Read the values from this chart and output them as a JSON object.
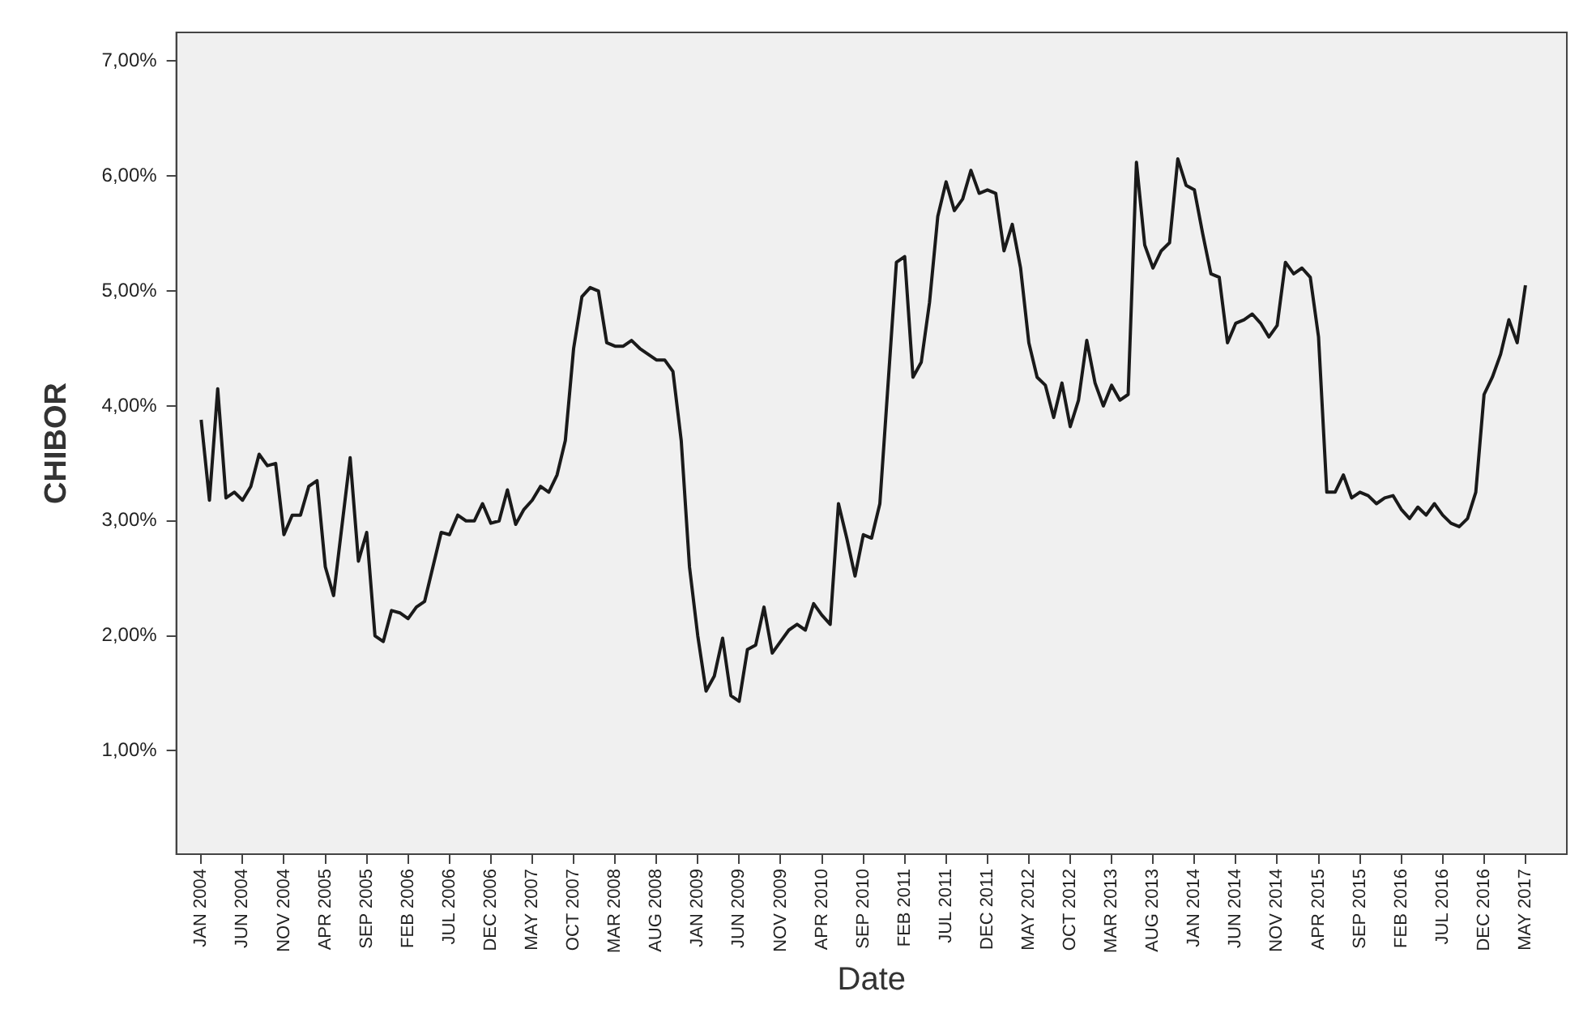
{
  "chart_data": {
    "type": "line",
    "xlabel": "Date",
    "ylabel": "CHIBOR",
    "color": "#1a1a1a",
    "grid": false,
    "legend": false,
    "marker": "none",
    "line_style": "solid",
    "ylim": [
      0.1,
      7.25
    ],
    "yticks": [
      {
        "value": 1,
        "label": "1,00%"
      },
      {
        "value": 2,
        "label": "2,00%"
      },
      {
        "value": 3,
        "label": "3,00%"
      },
      {
        "value": 4,
        "label": "4,00%"
      },
      {
        "value": 5,
        "label": "5,00%"
      },
      {
        "value": 6,
        "label": "6,00%"
      },
      {
        "value": 7,
        "label": "7,00%"
      }
    ],
    "xlim": [
      "2003-10",
      "2017-10"
    ],
    "xticks": [
      {
        "value": "2004-01",
        "label": "JAN 2004"
      },
      {
        "value": "2004-06",
        "label": "JUN 2004"
      },
      {
        "value": "2004-11",
        "label": "NOV 2004"
      },
      {
        "value": "2005-04",
        "label": "APR 2005"
      },
      {
        "value": "2005-09",
        "label": "SEP 2005"
      },
      {
        "value": "2006-02",
        "label": "FEB 2006"
      },
      {
        "value": "2006-07",
        "label": "JUL 2006"
      },
      {
        "value": "2006-12",
        "label": "DEC 2006"
      },
      {
        "value": "2007-05",
        "label": "MAY 2007"
      },
      {
        "value": "2007-10",
        "label": "OCT 2007"
      },
      {
        "value": "2008-03",
        "label": "MAR 2008"
      },
      {
        "value": "2008-08",
        "label": "AUG 2008"
      },
      {
        "value": "2009-01",
        "label": "JAN 2009"
      },
      {
        "value": "2009-06",
        "label": "JUN 2009"
      },
      {
        "value": "2009-11",
        "label": "NOV 2009"
      },
      {
        "value": "2010-04",
        "label": "APR 2010"
      },
      {
        "value": "2010-09",
        "label": "SEP 2010"
      },
      {
        "value": "2011-02",
        "label": "FEB 2011"
      },
      {
        "value": "2011-07",
        "label": "JUL 2011"
      },
      {
        "value": "2011-12",
        "label": "DEC 2011"
      },
      {
        "value": "2012-05",
        "label": "MAY 2012"
      },
      {
        "value": "2012-10",
        "label": "OCT 2012"
      },
      {
        "value": "2013-03",
        "label": "MAR 2013"
      },
      {
        "value": "2013-08",
        "label": "AUG 2013"
      },
      {
        "value": "2014-01",
        "label": "JAN 2014"
      },
      {
        "value": "2014-06",
        "label": "JUN 2014"
      },
      {
        "value": "2014-11",
        "label": "NOV 2014"
      },
      {
        "value": "2015-04",
        "label": "APR 2015"
      },
      {
        "value": "2015-09",
        "label": "SEP 2015"
      },
      {
        "value": "2016-02",
        "label": "FEB 2016"
      },
      {
        "value": "2016-07",
        "label": "JUL 2016"
      },
      {
        "value": "2016-12",
        "label": "DEC 2016"
      },
      {
        "value": "2017-05",
        "label": "MAY 2017"
      }
    ],
    "x": [
      "2004-01",
      "2004-02",
      "2004-03",
      "2004-04",
      "2004-05",
      "2004-06",
      "2004-07",
      "2004-08",
      "2004-09",
      "2004-10",
      "2004-11",
      "2004-12",
      "2005-01",
      "2005-02",
      "2005-03",
      "2005-04",
      "2005-05",
      "2005-06",
      "2005-07",
      "2005-08",
      "2005-09",
      "2005-10",
      "2005-11",
      "2005-12",
      "2006-01",
      "2006-02",
      "2006-03",
      "2006-04",
      "2006-05",
      "2006-06",
      "2006-07",
      "2006-08",
      "2006-09",
      "2006-10",
      "2006-11",
      "2006-12",
      "2007-01",
      "2007-02",
      "2007-03",
      "2007-04",
      "2007-05",
      "2007-06",
      "2007-07",
      "2007-08",
      "2007-09",
      "2007-10",
      "2007-11",
      "2007-12",
      "2008-01",
      "2008-02",
      "2008-03",
      "2008-04",
      "2008-05",
      "2008-06",
      "2008-07",
      "2008-08",
      "2008-09",
      "2008-10",
      "2008-11",
      "2008-12",
      "2009-01",
      "2009-02",
      "2009-03",
      "2009-04",
      "2009-05",
      "2009-06",
      "2009-07",
      "2009-08",
      "2009-09",
      "2009-10",
      "2009-11",
      "2009-12",
      "2010-01",
      "2010-02",
      "2010-03",
      "2010-04",
      "2010-05",
      "2010-06",
      "2010-07",
      "2010-08",
      "2010-09",
      "2010-10",
      "2010-11",
      "2010-12",
      "2011-01",
      "2011-02",
      "2011-03",
      "2011-04",
      "2011-05",
      "2011-06",
      "2011-07",
      "2011-08",
      "2011-09",
      "2011-10",
      "2011-11",
      "2011-12",
      "2012-01",
      "2012-02",
      "2012-03",
      "2012-04",
      "2012-05",
      "2012-06",
      "2012-07",
      "2012-08",
      "2012-09",
      "2012-10",
      "2012-11",
      "2012-12",
      "2013-01",
      "2013-02",
      "2013-03",
      "2013-04",
      "2013-05",
      "2013-06",
      "2013-07",
      "2013-08",
      "2013-09",
      "2013-10",
      "2013-11",
      "2013-12",
      "2014-01",
      "2014-02",
      "2014-03",
      "2014-04",
      "2014-05",
      "2014-06",
      "2014-07",
      "2014-08",
      "2014-09",
      "2014-10",
      "2014-11",
      "2014-12",
      "2015-01",
      "2015-02",
      "2015-03",
      "2015-04",
      "2015-05",
      "2015-06",
      "2015-07",
      "2015-08",
      "2015-09",
      "2015-10",
      "2015-11",
      "2015-12",
      "2016-01",
      "2016-02",
      "2016-03",
      "2016-04",
      "2016-05",
      "2016-06",
      "2016-07",
      "2016-08",
      "2016-09",
      "2016-10",
      "2016-11",
      "2016-12",
      "2017-01",
      "2017-02",
      "2017-03",
      "2017-04",
      "2017-05"
    ],
    "values": [
      3.88,
      3.18,
      4.15,
      3.2,
      3.25,
      3.18,
      3.3,
      3.58,
      3.48,
      3.5,
      2.88,
      3.05,
      3.05,
      3.3,
      3.35,
      2.6,
      2.35,
      2.95,
      3.55,
      2.65,
      2.9,
      2.0,
      1.95,
      2.22,
      2.2,
      2.15,
      2.25,
      2.3,
      2.6,
      2.9,
      2.88,
      3.05,
      3.0,
      3.0,
      3.15,
      2.98,
      3.0,
      3.27,
      2.97,
      3.1,
      3.18,
      3.3,
      3.25,
      3.4,
      3.7,
      4.5,
      4.95,
      5.03,
      5.0,
      4.55,
      4.52,
      4.52,
      4.57,
      4.5,
      4.45,
      4.4,
      4.4,
      4.3,
      3.7,
      2.6,
      2.0,
      1.52,
      1.65,
      1.98,
      1.48,
      1.43,
      1.88,
      1.92,
      2.25,
      1.85,
      1.95,
      2.05,
      2.1,
      2.05,
      2.28,
      2.18,
      2.1,
      3.15,
      2.85,
      2.52,
      2.88,
      2.85,
      3.15,
      4.2,
      5.25,
      5.3,
      4.25,
      4.38,
      4.9,
      5.65,
      5.95,
      5.7,
      5.8,
      6.05,
      5.85,
      5.88,
      5.85,
      5.35,
      5.58,
      5.2,
      4.55,
      4.25,
      4.18,
      3.9,
      4.2,
      3.82,
      4.05,
      4.57,
      4.2,
      4.0,
      4.18,
      4.05,
      4.1,
      6.12,
      5.4,
      5.2,
      5.35,
      5.42,
      6.15,
      5.92,
      5.88,
      5.5,
      5.15,
      5.12,
      4.55,
      4.72,
      4.75,
      4.8,
      4.72,
      4.6,
      4.7,
      5.25,
      5.15,
      5.2,
      5.12,
      4.6,
      3.25,
      3.25,
      3.4,
      3.2,
      3.25,
      3.22,
      3.15,
      3.2,
      3.22,
      3.1,
      3.02,
      3.12,
      3.05,
      3.15,
      3.05,
      2.98,
      2.95,
      3.02,
      3.25,
      4.1,
      4.25,
      4.45,
      4.75,
      4.55,
      5.05
    ]
  }
}
